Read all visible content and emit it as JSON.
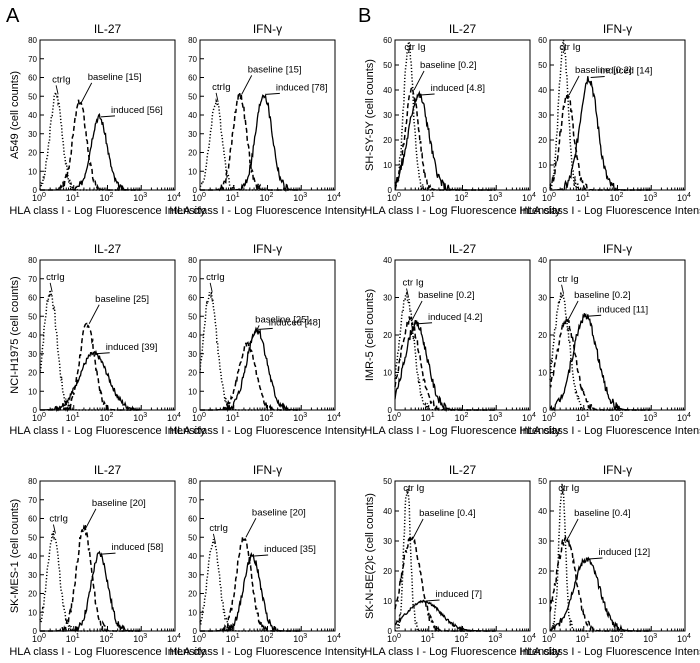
{
  "panel_labels": [
    "A",
    "B"
  ],
  "chart_data": [
    {
      "id": "A1",
      "type": "line",
      "title": "IL-27",
      "ylabel": "A549 (cell counts)",
      "xlabel": "HLA class I - Log Fluorescence Intensity",
      "ylim": [
        0,
        80
      ],
      "yticks": [
        0,
        10,
        20,
        30,
        40,
        50,
        60,
        70,
        80
      ],
      "series": [
        {
          "name": "ctrIg",
          "peak_x": 3,
          "peak_y": 51,
          "width": 0.18,
          "style": "dotted",
          "label": "ctrIg"
        },
        {
          "name": "baseline",
          "peak_x": 15,
          "peak_y": 47,
          "width": 0.2,
          "style": "dashed",
          "label": "baseline [15]"
        },
        {
          "name": "induced",
          "peak_x": 56,
          "peak_y": 39,
          "width": 0.24,
          "style": "solid",
          "label": "induced [56]"
        }
      ]
    },
    {
      "id": "A2",
      "type": "line",
      "title": "IFN-γ",
      "ylabel": "",
      "xlabel": "HLA class I - Log Fluorescence Intensity",
      "ylim": [
        0,
        80
      ],
      "yticks": [
        0,
        10,
        20,
        30,
        40,
        50,
        60,
        70,
        80
      ],
      "series": [
        {
          "name": "ctrIg",
          "peak_x": 3,
          "peak_y": 47,
          "width": 0.18,
          "style": "dotted",
          "label": "ctrIg"
        },
        {
          "name": "baseline",
          "peak_x": 15,
          "peak_y": 51,
          "width": 0.2,
          "style": "dashed",
          "label": "baseline [15]"
        },
        {
          "name": "induced",
          "peak_x": 78,
          "peak_y": 51,
          "width": 0.24,
          "style": "solid",
          "label": "induced [78]"
        }
      ]
    },
    {
      "id": "B1",
      "type": "line",
      "title": "IL-27",
      "ylabel": "SH-SY-5Y (cell counts)",
      "xlabel": "HLA class I - Log Fluorescence Intensity",
      "ylim": [
        0,
        60
      ],
      "yticks": [
        0,
        10,
        20,
        30,
        40,
        50,
        60
      ],
      "series": [
        {
          "name": "ctr Ig",
          "peak_x": 2.5,
          "peak_y": 58,
          "width": 0.14,
          "style": "dotted",
          "label": "ctr Ig"
        },
        {
          "name": "baseline",
          "peak_x": 3.2,
          "peak_y": 40,
          "width": 0.2,
          "style": "dashed",
          "label": "baseline [0.2]"
        },
        {
          "name": "induced",
          "peak_x": 5,
          "peak_y": 38,
          "width": 0.3,
          "style": "solid",
          "label": "induced [4.8]"
        }
      ]
    },
    {
      "id": "B2",
      "type": "line",
      "title": "IFN-γ",
      "ylabel": "",
      "xlabel": "HLA class I - Log Fluorescence Intensity",
      "ylim": [
        0,
        60
      ],
      "yticks": [
        0,
        10,
        20,
        30,
        40,
        50,
        60
      ],
      "series": [
        {
          "name": "ctr Ig",
          "peak_x": 2.5,
          "peak_y": 58,
          "width": 0.14,
          "style": "dotted",
          "label": "ctr Ig"
        },
        {
          "name": "baseline",
          "peak_x": 3.2,
          "peak_y": 38,
          "width": 0.2,
          "style": "dashed",
          "label": "baseline [0.2]"
        },
        {
          "name": "induced",
          "peak_x": 14,
          "peak_y": 45,
          "width": 0.26,
          "style": "solid",
          "label": "induced [14]"
        }
      ]
    },
    {
      "id": "A3",
      "type": "line",
      "title": "IL-27",
      "ylabel": "NCI-H1975 (cell counts)",
      "xlabel": "HLA class I - Log Fluorescence Intensity",
      "ylim": [
        0,
        80
      ],
      "yticks": [
        0,
        10,
        20,
        30,
        40,
        50,
        60,
        70,
        80
      ],
      "series": [
        {
          "name": "ctrIg",
          "peak_x": 2,
          "peak_y": 63,
          "width": 0.2,
          "style": "dotted",
          "label": "ctrIg"
        },
        {
          "name": "baseline",
          "peak_x": 25,
          "peak_y": 46,
          "width": 0.22,
          "style": "dashed",
          "label": "baseline [25]"
        },
        {
          "name": "induced",
          "peak_x": 39,
          "peak_y": 30,
          "width": 0.42,
          "style": "solid",
          "label": "induced [39]"
        }
      ]
    },
    {
      "id": "A4",
      "type": "line",
      "title": "IFN-γ",
      "ylabel": "",
      "xlabel": "HLA class I - Log Fluorescence Intensity",
      "ylim": [
        0,
        80
      ],
      "yticks": [
        0,
        10,
        20,
        30,
        40,
        50,
        60,
        70,
        80
      ],
      "series": [
        {
          "name": "ctrIg",
          "peak_x": 2,
          "peak_y": 63,
          "width": 0.2,
          "style": "dotted",
          "label": "ctrIg"
        },
        {
          "name": "baseline",
          "peak_x": 25,
          "peak_y": 35,
          "width": 0.25,
          "style": "dashed",
          "label": "baseline [25]"
        },
        {
          "name": "induced",
          "peak_x": 48,
          "peak_y": 43,
          "width": 0.3,
          "style": "solid",
          "label": "induced [48]"
        }
      ]
    },
    {
      "id": "B3",
      "type": "line",
      "title": "IL-27",
      "ylabel": "IMR-5 (cell counts)",
      "xlabel": "HLA class I - Log Fluorescence Intensity",
      "ylim": [
        0,
        40
      ],
      "yticks": [
        0,
        10,
        20,
        30,
        40
      ],
      "series": [
        {
          "name": "ctr Ig",
          "peak_x": 2.2,
          "peak_y": 30,
          "width": 0.22,
          "style": "dotted",
          "label": "ctr Ig"
        },
        {
          "name": "baseline",
          "peak_x": 2.8,
          "peak_y": 24,
          "width": 0.28,
          "style": "dashed",
          "label": "baseline [0.2]"
        },
        {
          "name": "induced",
          "peak_x": 4.2,
          "peak_y": 23,
          "width": 0.33,
          "style": "solid",
          "label": "induced [4.2]"
        }
      ]
    },
    {
      "id": "B4",
      "type": "line",
      "title": "IFN-γ",
      "ylabel": "",
      "xlabel": "HLA class I - Log Fluorescence Intensity",
      "ylim": [
        0,
        40
      ],
      "yticks": [
        0,
        10,
        20,
        30,
        40
      ],
      "series": [
        {
          "name": "ctr Ig",
          "peak_x": 2.2,
          "peak_y": 31,
          "width": 0.22,
          "style": "dotted",
          "label": "ctr Ig"
        },
        {
          "name": "baseline",
          "peak_x": 3,
          "peak_y": 24,
          "width": 0.28,
          "style": "dashed",
          "label": "baseline [0.2]"
        },
        {
          "name": "induced",
          "peak_x": 11,
          "peak_y": 25,
          "width": 0.36,
          "style": "solid",
          "label": "induced [11]"
        }
      ]
    },
    {
      "id": "A5",
      "type": "line",
      "title": "IL-27",
      "ylabel": "SK-MES-1 (cell counts)",
      "xlabel": "HLA class I - Log Fluorescence Intensity",
      "ylim": [
        0,
        80
      ],
      "yticks": [
        0,
        10,
        20,
        30,
        40,
        50,
        60,
        70,
        80
      ],
      "series": [
        {
          "name": "ctrIg",
          "peak_x": 2.5,
          "peak_y": 52,
          "width": 0.18,
          "style": "dotted",
          "label": "ctrIg"
        },
        {
          "name": "baseline",
          "peak_x": 20,
          "peak_y": 55,
          "width": 0.22,
          "style": "dashed",
          "label": "baseline [20]"
        },
        {
          "name": "induced",
          "peak_x": 58,
          "peak_y": 41,
          "width": 0.25,
          "style": "solid",
          "label": "induced [58]"
        }
      ]
    },
    {
      "id": "A6",
      "type": "line",
      "title": "IFN-γ",
      "ylabel": "",
      "xlabel": "HLA class I - Log Fluorescence Intensity",
      "ylim": [
        0,
        80
      ],
      "yticks": [
        0,
        10,
        20,
        30,
        40,
        50,
        60,
        70,
        80
      ],
      "series": [
        {
          "name": "ctrIg",
          "peak_x": 2.5,
          "peak_y": 47,
          "width": 0.18,
          "style": "dotted",
          "label": "ctrIg"
        },
        {
          "name": "baseline",
          "peak_x": 20,
          "peak_y": 50,
          "width": 0.22,
          "style": "dashed",
          "label": "baseline [20]"
        },
        {
          "name": "induced",
          "peak_x": 35,
          "peak_y": 40,
          "width": 0.25,
          "style": "solid",
          "label": "induced [35]"
        }
      ]
    },
    {
      "id": "B5",
      "type": "line",
      "title": "IL-27",
      "ylabel": "SK-N-BE(2)c (cell counts)",
      "xlabel": "HLA class I - Log Fluorescence Intensity",
      "ylim": [
        0,
        50
      ],
      "yticks": [
        0,
        10,
        20,
        30,
        40,
        50
      ],
      "series": [
        {
          "name": "ctr Ig",
          "peak_x": 2.3,
          "peak_y": 48,
          "width": 0.1,
          "style": "dotted",
          "label": "ctr Ig"
        },
        {
          "name": "baseline",
          "peak_x": 3,
          "peak_y": 31,
          "width": 0.28,
          "style": "dashed",
          "label": "baseline [0.4]"
        },
        {
          "name": "induced",
          "peak_x": 7,
          "peak_y": 10,
          "width": 0.5,
          "style": "solid",
          "label": "induced [7]"
        }
      ]
    },
    {
      "id": "B6",
      "type": "line",
      "title": "IFN-γ",
      "ylabel": "",
      "xlabel": "HLA class I - Log Fluorescence Intensity",
      "ylim": [
        0,
        50
      ],
      "yticks": [
        0,
        10,
        20,
        30,
        40,
        50
      ],
      "series": [
        {
          "name": "ctr Ig",
          "peak_x": 2.3,
          "peak_y": 48,
          "width": 0.1,
          "style": "dotted",
          "label": "ctr Ig"
        },
        {
          "name": "baseline",
          "peak_x": 3,
          "peak_y": 31,
          "width": 0.28,
          "style": "dashed",
          "label": "baseline [0.4]"
        },
        {
          "name": "induced",
          "peak_x": 12,
          "peak_y": 24,
          "width": 0.38,
          "style": "solid",
          "label": "induced [12]"
        }
      ]
    }
  ],
  "xtick_base": "10",
  "xtick_exponents": [
    "0",
    "1",
    "2",
    "3",
    "4"
  ]
}
